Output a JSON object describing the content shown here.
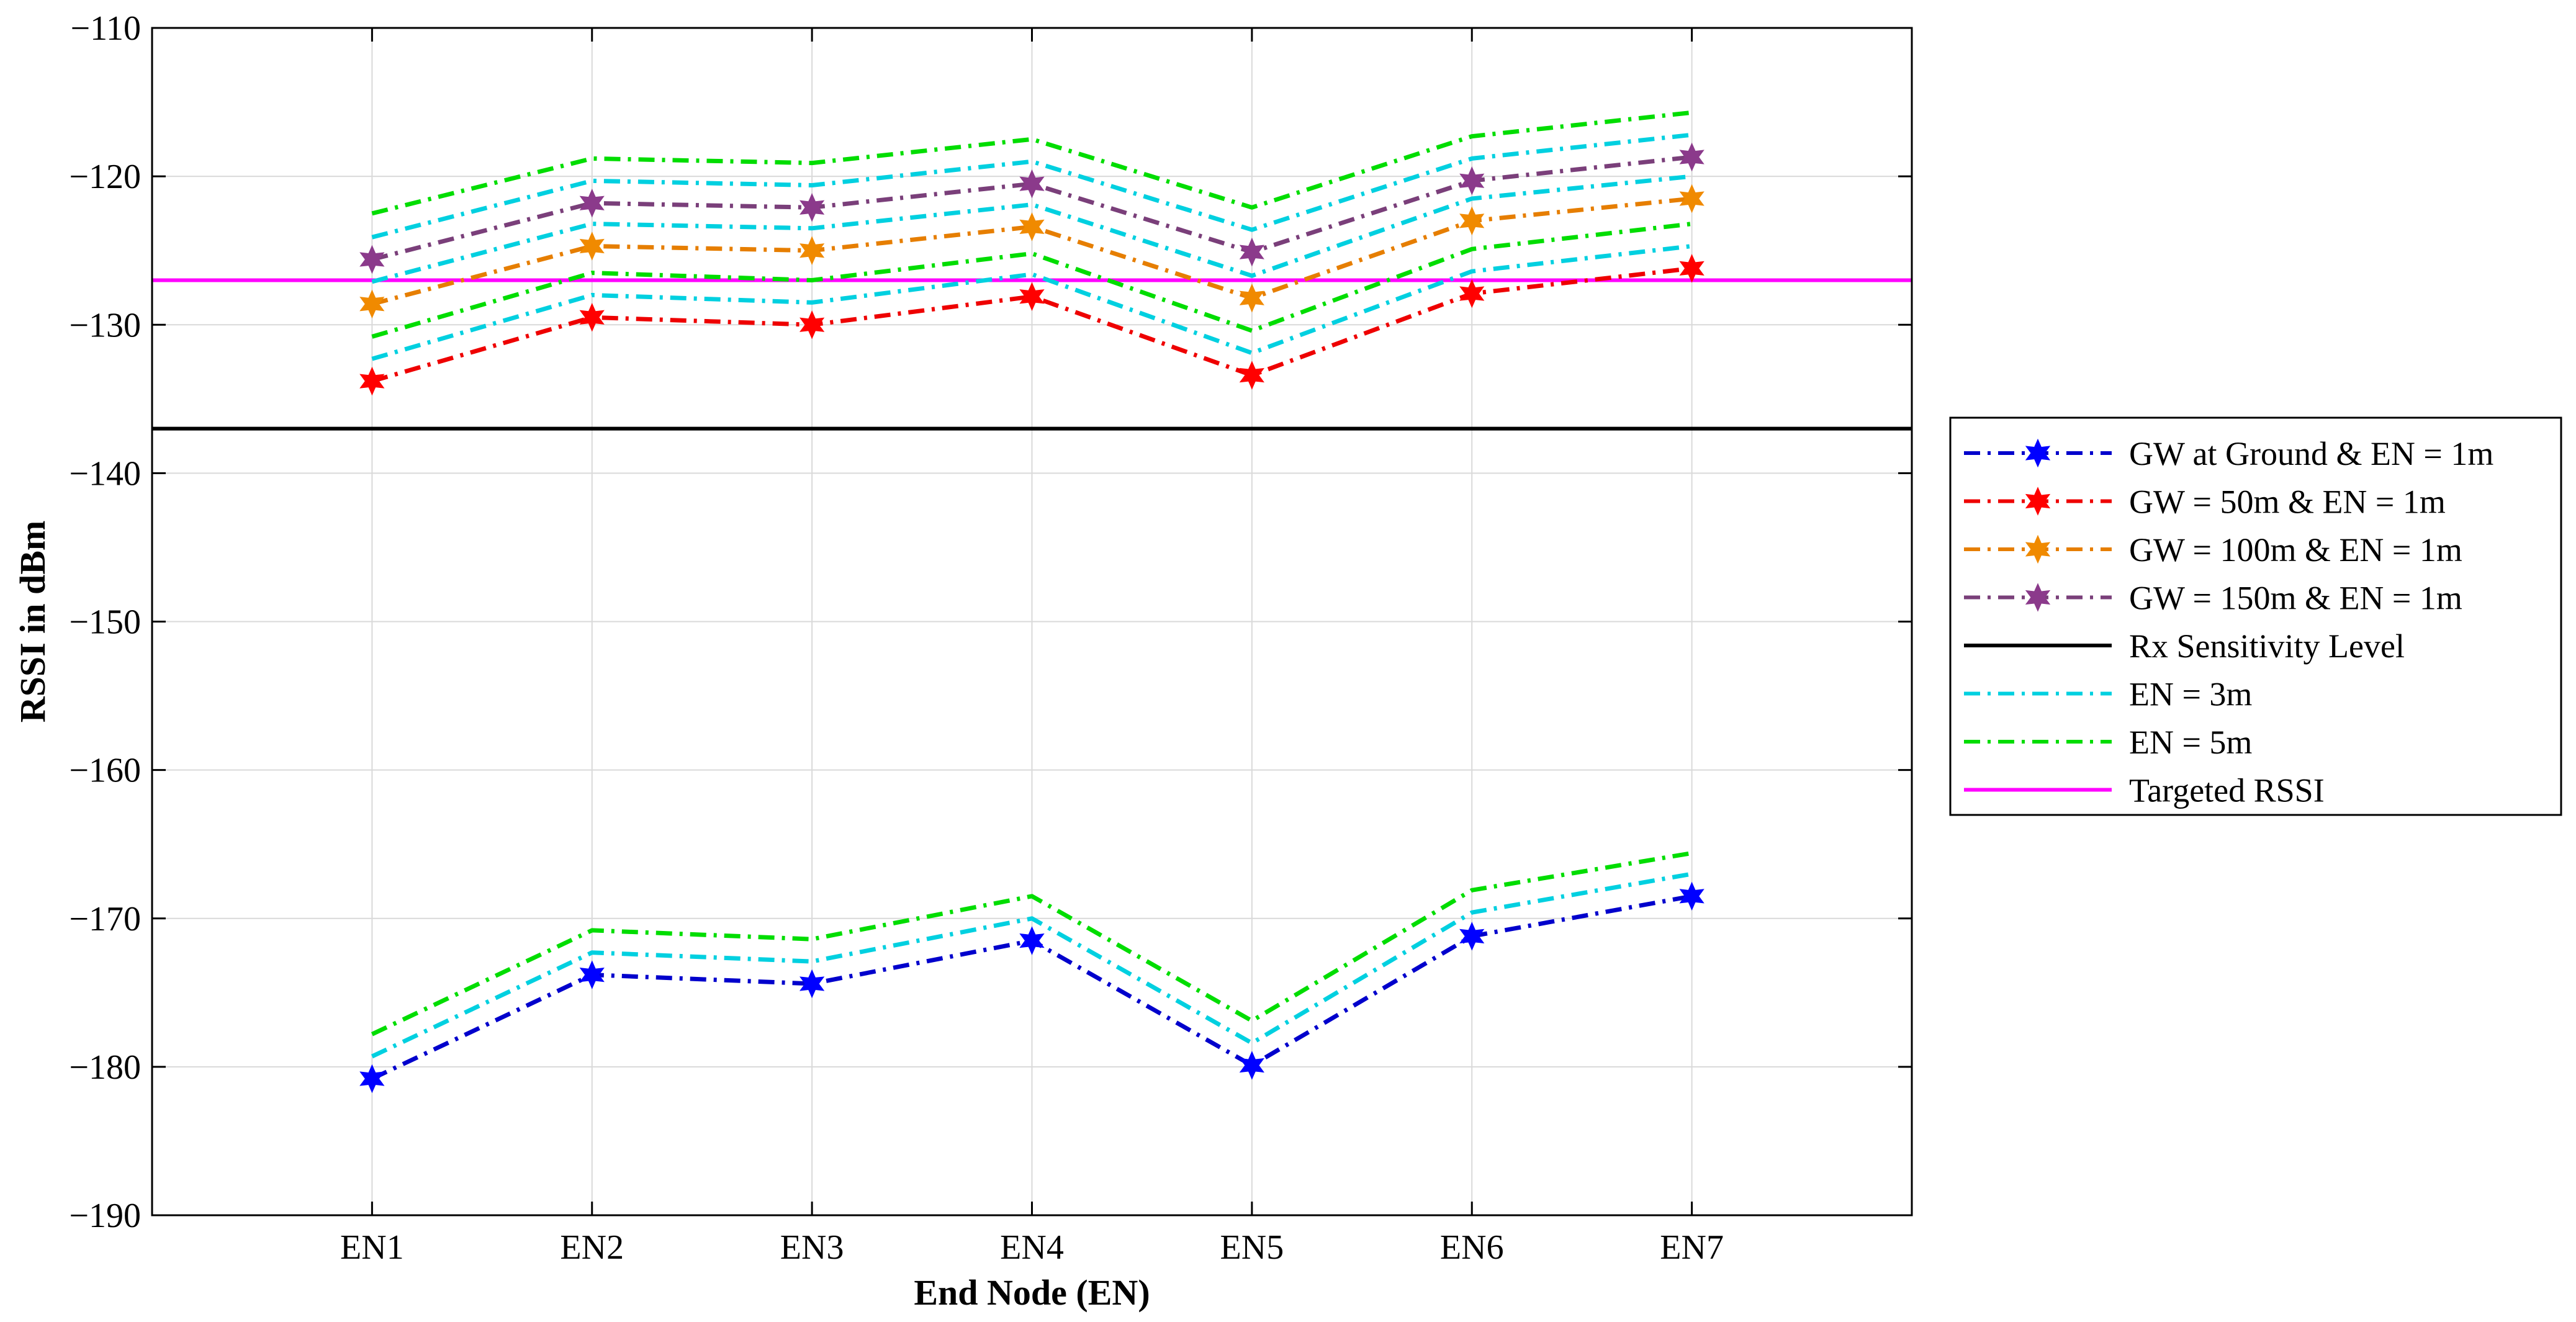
{
  "chart_data": {
    "type": "line",
    "title": "",
    "xlabel": "End Node (EN)",
    "ylabel": "RSSI in dBm",
    "categories": [
      "EN1",
      "EN2",
      "EN3",
      "EN4",
      "EN5",
      "EN6",
      "EN7"
    ],
    "ylim": [
      -190,
      -110
    ],
    "yticks": [
      -190,
      -180,
      -170,
      -160,
      -150,
      -140,
      -130,
      -120,
      -110
    ],
    "grid": true,
    "legend_position": "outside-right",
    "series": [
      {
        "name": "GW at Ground & EN = 1m",
        "color": "#0000cc",
        "style": "dashdot",
        "marker": "star",
        "marker_color": "#0000ff",
        "in_legend": true,
        "values": [
          -180.8,
          -173.8,
          -174.4,
          -171.5,
          -179.9,
          -171.2,
          -168.5
        ]
      },
      {
        "name": "GW = 50m & EN = 1m",
        "color": "#ee0000",
        "style": "dashdot",
        "marker": "star",
        "marker_color": "#ff0000",
        "in_legend": true,
        "values": [
          -133.8,
          -129.5,
          -130.0,
          -128.1,
          -133.4,
          -127.9,
          -126.2
        ]
      },
      {
        "name": "GW = 100m & EN = 1m",
        "color": "#e67e00",
        "style": "dashdot",
        "marker": "star",
        "marker_color": "#f08a00",
        "in_legend": true,
        "values": [
          -128.6,
          -124.7,
          -125.0,
          -123.4,
          -128.2,
          -123.0,
          -121.5
        ]
      },
      {
        "name": "GW = 150m & EN = 1m",
        "color": "#7a3f7a",
        "style": "dashdot",
        "marker": "star",
        "marker_color": "#8b3a8b",
        "in_legend": true,
        "values": [
          -125.6,
          -121.8,
          -122.1,
          -120.5,
          -125.1,
          -120.3,
          -118.7
        ]
      },
      {
        "name": "Rx Sensitivity Level",
        "color": "#000000",
        "style": "solid",
        "marker": "none",
        "in_legend": true,
        "constant": -137
      },
      {
        "name": "EN = 3m",
        "color": "#00d0e0",
        "style": "dashdot",
        "marker": "none",
        "in_legend": true,
        "values": [
          -179.3,
          -172.3,
          -172.9,
          -170.0,
          -178.4,
          -169.6,
          -167.0
        ]
      },
      {
        "name": "EN = 5m",
        "color": "#00dd00",
        "style": "dashdot",
        "marker": "none",
        "in_legend": true,
        "values": [
          -177.8,
          -170.8,
          -171.4,
          -168.5,
          -176.9,
          -168.1,
          -165.6
        ]
      },
      {
        "name": "Targeted RSSI",
        "color": "#ff00ff",
        "style": "solid",
        "marker": "none",
        "in_legend": true,
        "constant": -127
      },
      {
        "name": "GW = 50m & EN = 3m",
        "color": "#00d0e0",
        "style": "dashdot",
        "marker": "none",
        "in_legend": false,
        "values": [
          -132.3,
          -128.0,
          -128.5,
          -126.6,
          -131.9,
          -126.4,
          -124.7
        ]
      },
      {
        "name": "GW = 50m & EN = 5m",
        "color": "#00dd00",
        "style": "dashdot",
        "marker": "none",
        "in_legend": false,
        "values": [
          -130.8,
          -126.5,
          -127.0,
          -125.2,
          -130.4,
          -124.9,
          -123.2
        ]
      },
      {
        "name": "GW = 100m & EN = 3m",
        "color": "#00d0e0",
        "style": "dashdot",
        "marker": "none",
        "in_legend": false,
        "values": [
          -127.1,
          -123.2,
          -123.5,
          -121.9,
          -126.7,
          -121.5,
          -120.0
        ]
      },
      {
        "name": "GW = 150m & EN = 3m",
        "color": "#00d0e0",
        "style": "dashdot",
        "marker": "none",
        "in_legend": false,
        "values": [
          -124.1,
          -120.3,
          -120.6,
          -119.0,
          -123.6,
          -118.8,
          -117.2
        ]
      },
      {
        "name": "GW = 150m & EN = 5m",
        "color": "#00dd00",
        "style": "dashdot",
        "marker": "none",
        "in_legend": false,
        "values": [
          -122.5,
          -118.8,
          -119.1,
          -117.5,
          -122.1,
          -117.3,
          -115.7
        ]
      }
    ]
  }
}
